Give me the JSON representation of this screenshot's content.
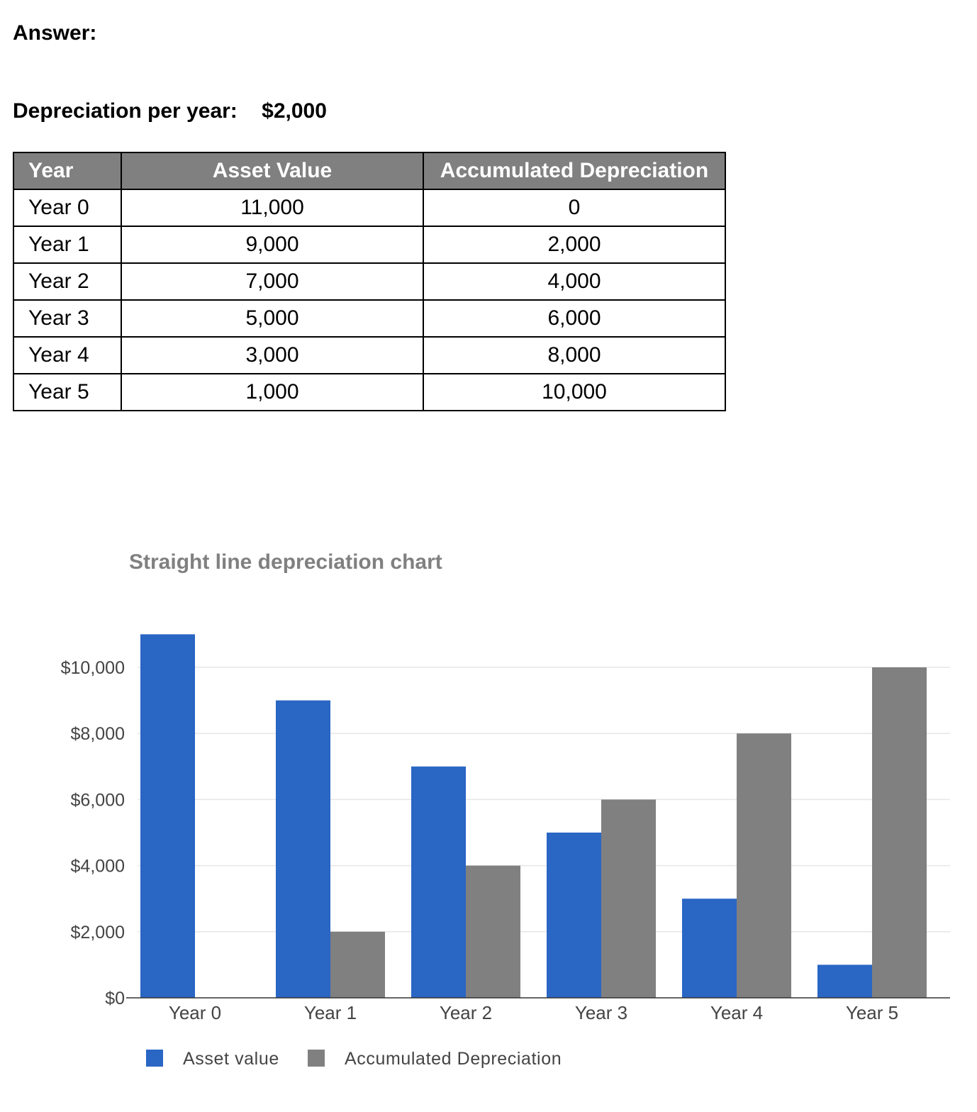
{
  "answer_label": "Answer:",
  "depreciation": {
    "label": "Depreciation per year:",
    "value": "$2,000"
  },
  "table": {
    "headers": [
      "Year",
      "Asset Value",
      "Accumulated Depreciation"
    ],
    "rows": [
      [
        "Year 0",
        "11,000",
        "0"
      ],
      [
        "Year 1",
        "9,000",
        "2,000"
      ],
      [
        "Year 2",
        "7,000",
        "4,000"
      ],
      [
        "Year 3",
        "5,000",
        "6,000"
      ],
      [
        "Year 4",
        "3,000",
        "8,000"
      ],
      [
        "Year 5",
        "1,000",
        "10,000"
      ]
    ],
    "header_color": "#808080"
  },
  "chart_data": {
    "type": "bar",
    "title": "Straight line depreciation chart",
    "categories": [
      "Year 0",
      "Year 1",
      "Year 2",
      "Year 3",
      "Year 4",
      "Year 5"
    ],
    "series": [
      {
        "name": "Asset value",
        "values": [
          11000,
          9000,
          7000,
          5000,
          3000,
          1000
        ],
        "color": "#2a66c4"
      },
      {
        "name": "Accumulated Depreciation",
        "values": [
          0,
          2000,
          4000,
          6000,
          8000,
          10000
        ],
        "color": "#808080"
      }
    ],
    "yticks": [
      "$0",
      "$2,000",
      "$4,000",
      "$6,000",
      "$8,000",
      "$10,000"
    ],
    "ylim": [
      0,
      10000
    ],
    "grid": true,
    "legend_position": "bottom-left",
    "xlabel": "",
    "ylabel": ""
  }
}
